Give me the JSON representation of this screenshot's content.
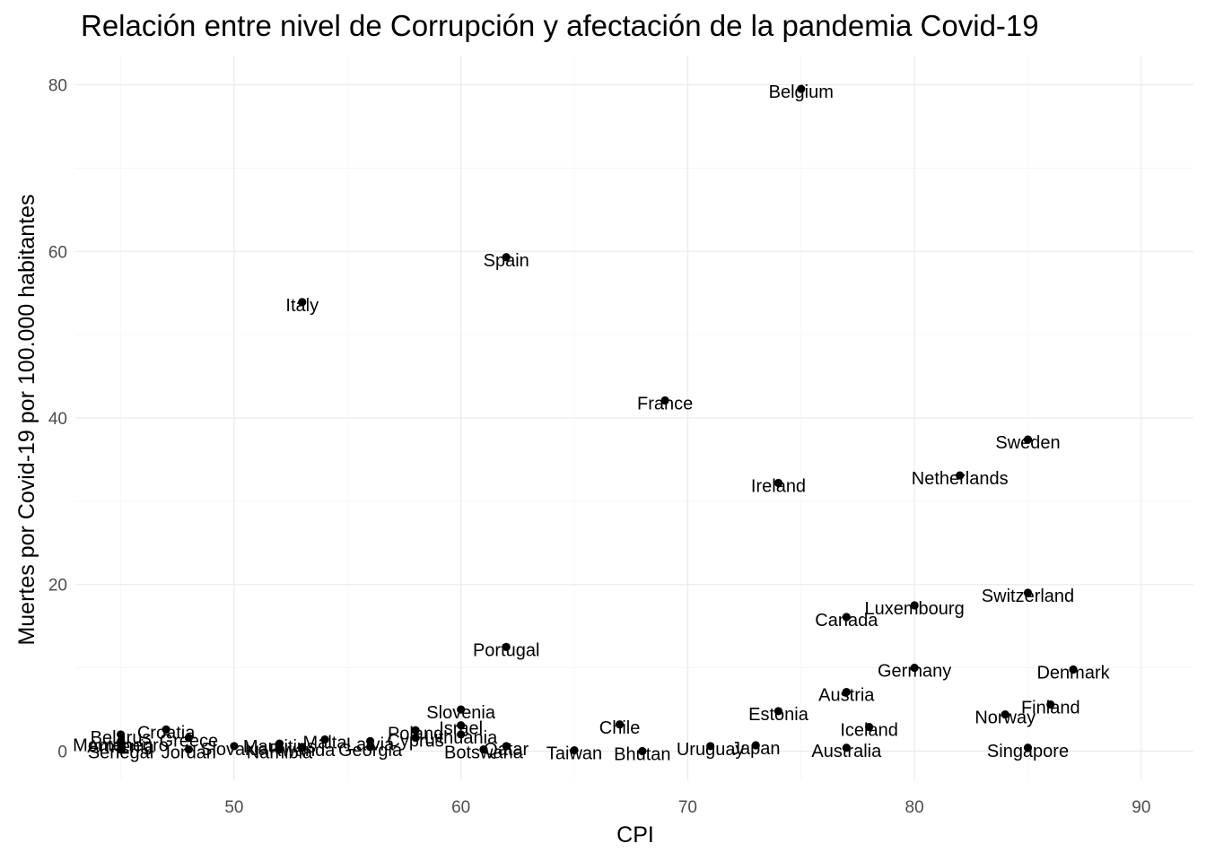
{
  "chart_data": {
    "type": "scatter",
    "title": "Relación entre nivel de Corrupción y afectación de la pandemia Covid-19",
    "xlabel": "CPI",
    "ylabel": "Muertes por Covid-19 por 100.000 habitantes",
    "xlim": [
      43,
      92.3
    ],
    "ylim": [
      -3.5,
      83.5
    ],
    "x_ticks": [
      50,
      60,
      70,
      80,
      90
    ],
    "y_ticks": [
      0,
      20,
      40,
      60,
      80
    ],
    "grid": true,
    "point_color": "#000000",
    "points": [
      {
        "label": "Belgium",
        "x": 75,
        "y": 79.5
      },
      {
        "label": "Spain",
        "x": 62,
        "y": 59.3
      },
      {
        "label": "Italy",
        "x": 53,
        "y": 53.9
      },
      {
        "label": "France",
        "x": 69,
        "y": 42.1
      },
      {
        "label": "Sweden",
        "x": 85,
        "y": 37.4
      },
      {
        "label": "Netherlands",
        "x": 82,
        "y": 33.1
      },
      {
        "label": "Ireland",
        "x": 74,
        "y": 32.2
      },
      {
        "label": "Switzerland",
        "x": 85,
        "y": 19.0
      },
      {
        "label": "Luxembourg",
        "x": 80,
        "y": 17.5
      },
      {
        "label": "Canada",
        "x": 77,
        "y": 16.1
      },
      {
        "label": "Portugal",
        "x": 62,
        "y": 12.5
      },
      {
        "label": "Germany",
        "x": 80,
        "y": 10.0
      },
      {
        "label": "Denmark",
        "x": 87,
        "y": 9.8
      },
      {
        "label": "Austria",
        "x": 77,
        "y": 7.1
      },
      {
        "label": "Finland",
        "x": 86,
        "y": 5.6
      },
      {
        "label": "Slovenia",
        "x": 60,
        "y": 5.0
      },
      {
        "label": "Estonia",
        "x": 74,
        "y": 4.8
      },
      {
        "label": "Norway",
        "x": 84,
        "y": 4.4
      },
      {
        "label": "Chile",
        "x": 67,
        "y": 3.2
      },
      {
        "label": "Israel",
        "x": 60,
        "y": 3.1
      },
      {
        "label": "Iceland",
        "x": 78,
        "y": 2.9
      },
      {
        "label": "Croatia",
        "x": 47,
        "y": 2.6
      },
      {
        "label": "Poland",
        "x": 58,
        "y": 2.5
      },
      {
        "label": "Lithuania",
        "x": 60,
        "y": 2.0
      },
      {
        "label": "Belarus",
        "x": 45,
        "y": 2.0
      },
      {
        "label": "Greece",
        "x": 48,
        "y": 1.6
      },
      {
        "label": "Cyprus",
        "x": 58,
        "y": 1.6
      },
      {
        "label": "Malta",
        "x": 54,
        "y": 1.4
      },
      {
        "label": "Latvia",
        "x": 56,
        "y": 1.2
      },
      {
        "label": "Montenegro",
        "x": 45,
        "y": 1.1
      },
      {
        "label": "Armenia",
        "x": 45,
        "y": 0.9
      },
      {
        "label": "Slovakia",
        "x": 50,
        "y": 0.6
      },
      {
        "label": "Rwanda",
        "x": 53,
        "y": 0.5
      },
      {
        "label": "Mauritius",
        "x": 52,
        "y": 0.9
      },
      {
        "label": "Namibia",
        "x": 52,
        "y": 0.2
      },
      {
        "label": "Georgia",
        "x": 56,
        "y": 0.5
      },
      {
        "label": "Botswana",
        "x": 61,
        "y": 0.2
      },
      {
        "label": "Qatar",
        "x": 62,
        "y": 0.6
      },
      {
        "label": "Taiwan",
        "x": 65,
        "y": 0.1
      },
      {
        "label": "Bhutan",
        "x": 68,
        "y": 0.0
      },
      {
        "label": "Uruguay",
        "x": 71,
        "y": 0.6
      },
      {
        "label": "Japan",
        "x": 73,
        "y": 0.7
      },
      {
        "label": "Australia",
        "x": 77,
        "y": 0.4
      },
      {
        "label": "Singapore",
        "x": 85,
        "y": 0.4
      },
      {
        "label": "Senegal",
        "x": 45,
        "y": 0.2
      },
      {
        "label": "Jordan",
        "x": 48,
        "y": 0.2
      }
    ]
  }
}
